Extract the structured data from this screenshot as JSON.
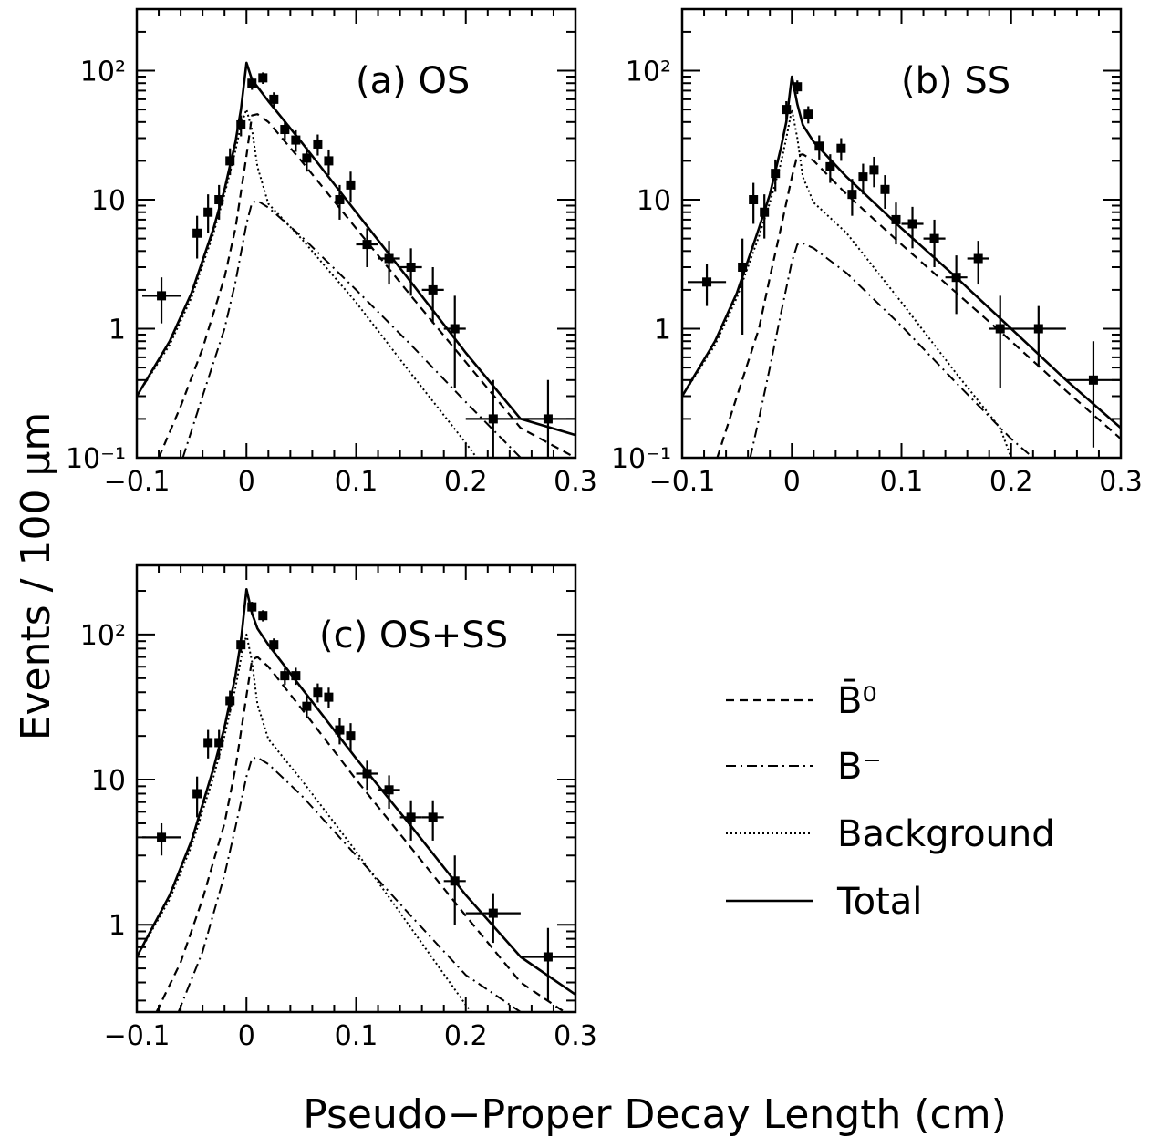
{
  "figure": {
    "ylabel": "Events / 100 μm",
    "xlabel": "Pseudo−Proper Decay Length (cm)"
  },
  "legend": {
    "items": [
      {
        "key": "b0",
        "label": "B̄⁰",
        "style": "dashed"
      },
      {
        "key": "bminus",
        "label": "B⁻",
        "style": "dashdot"
      },
      {
        "key": "background",
        "label": "Background",
        "style": "dotted"
      },
      {
        "key": "total",
        "label": "Total",
        "style": "solid"
      }
    ]
  },
  "chart_data": [
    {
      "type": "scatter",
      "panel": "a",
      "title_tag": "(a)",
      "title_text": "OS",
      "xlim": [
        -0.1,
        0.3
      ],
      "ylim": [
        0.1,
        300
      ],
      "yscale": "log",
      "xticks": [
        "−0.1",
        "0",
        "0.1",
        "0.2",
        "0.3"
      ],
      "yticks": [
        {
          "v": 0.1,
          "label": "10⁻¹"
        },
        {
          "v": 1,
          "label": "1"
        },
        {
          "v": 10,
          "label": "10"
        },
        {
          "v": 100,
          "label": "10²"
        }
      ],
      "points": [
        {
          "x": -0.0775,
          "y": 1.8,
          "xerr": 0.0175,
          "ylo": 1.1,
          "yhi": 2.5
        },
        {
          "x": -0.045,
          "y": 5.5,
          "xerr": 0,
          "ylo": 3.5,
          "yhi": 7.5
        },
        {
          "x": -0.035,
          "y": 8,
          "xerr": 0,
          "ylo": 5.5,
          "yhi": 11
        },
        {
          "x": -0.025,
          "y": 10,
          "xerr": 0,
          "ylo": 7,
          "yhi": 13
        },
        {
          "x": -0.015,
          "y": 20,
          "xerr": 0,
          "ylo": 15.5,
          "yhi": 25
        },
        {
          "x": -0.005,
          "y": 38,
          "xerr": 0,
          "ylo": 31,
          "yhi": 45
        },
        {
          "x": 0.005,
          "y": 80,
          "xerr": 0,
          "ylo": 71,
          "yhi": 89
        },
        {
          "x": 0.015,
          "y": 88,
          "xerr": 0,
          "ylo": 79,
          "yhi": 97
        },
        {
          "x": 0.025,
          "y": 60,
          "xerr": 0,
          "ylo": 52,
          "yhi": 68
        },
        {
          "x": 0.035,
          "y": 35,
          "xerr": 0,
          "ylo": 29,
          "yhi": 41
        },
        {
          "x": 0.045,
          "y": 29,
          "xerr": 0,
          "ylo": 23.5,
          "yhi": 34.5
        },
        {
          "x": 0.055,
          "y": 21,
          "xerr": 0,
          "ylo": 16.5,
          "yhi": 25.5
        },
        {
          "x": 0.065,
          "y": 27,
          "xerr": 0,
          "ylo": 22,
          "yhi": 32
        },
        {
          "x": 0.075,
          "y": 20,
          "xerr": 0,
          "ylo": 15.5,
          "yhi": 24.5
        },
        {
          "x": 0.085,
          "y": 10,
          "xerr": 0,
          "ylo": 7,
          "yhi": 13
        },
        {
          "x": 0.095,
          "y": 13,
          "xerr": 0,
          "ylo": 9.5,
          "yhi": 16.5
        },
        {
          "x": 0.11,
          "y": 4.5,
          "xerr": 0.01,
          "ylo": 3,
          "yhi": 6
        },
        {
          "x": 0.13,
          "y": 3.5,
          "xerr": 0.01,
          "ylo": 2.2,
          "yhi": 4.8
        },
        {
          "x": 0.15,
          "y": 3,
          "xerr": 0.01,
          "ylo": 1.8,
          "yhi": 4.2
        },
        {
          "x": 0.17,
          "y": 2,
          "xerr": 0.01,
          "ylo": 1.1,
          "yhi": 3
        },
        {
          "x": 0.19,
          "y": 1,
          "xerr": 0.01,
          "ylo": 0.35,
          "yhi": 1.8
        },
        {
          "x": 0.225,
          "y": 0.2,
          "xerr": 0.025,
          "ylo": 0.1,
          "yhi": 0.4
        },
        {
          "x": 0.275,
          "y": 0.2,
          "xerr": 0.025,
          "ylo": 0.1,
          "yhi": 0.4
        }
      ],
      "curves": {
        "total": {
          "x": [
            -0.1,
            -0.07,
            -0.05,
            -0.03,
            -0.02,
            -0.01,
            -0.005,
            0,
            0.005,
            0.01,
            0.02,
            0.05,
            0.1,
            0.15,
            0.2,
            0.25,
            0.3
          ],
          "y": [
            0.3,
            0.8,
            1.9,
            6,
            12,
            28,
            50,
            115,
            85,
            75,
            58,
            28,
            8,
            2.3,
            0.65,
            0.2,
            0.15
          ]
        },
        "b0": {
          "x": [
            -0.08,
            -0.06,
            -0.04,
            -0.02,
            -0.01,
            0,
            0.005,
            0.01,
            0.02,
            0.05,
            0.1,
            0.15,
            0.2,
            0.25,
            0.3
          ],
          "y": [
            0.1,
            0.25,
            0.7,
            2.5,
            6,
            22,
            45,
            46,
            40,
            20,
            6,
            1.8,
            0.55,
            0.17,
            0.1
          ]
        },
        "bminus": {
          "x": [
            -0.058,
            -0.04,
            -0.02,
            -0.01,
            0,
            0.005,
            0.01,
            0.02,
            0.05,
            0.1,
            0.15,
            0.2,
            0.25,
            0.265
          ],
          "y": [
            0.1,
            0.3,
            1.0,
            2.3,
            6.5,
            9.5,
            9.8,
            8.7,
            5.2,
            2.0,
            0.75,
            0.27,
            0.1,
            0.1
          ]
        },
        "background": {
          "x": [
            -0.1,
            -0.07,
            -0.05,
            -0.03,
            -0.02,
            -0.01,
            -0.005,
            0,
            0.005,
            0.01,
            0.02,
            0.05,
            0.1,
            0.15,
            0.2,
            0.21
          ],
          "y": [
            0.3,
            0.75,
            1.75,
            5.5,
            11,
            24,
            38,
            50,
            35,
            18,
            9.3,
            5,
            1.6,
            0.45,
            0.13,
            0.1
          ]
        }
      }
    },
    {
      "type": "scatter",
      "panel": "b",
      "title_tag": "(b)",
      "title_text": "SS",
      "xlim": [
        -0.1,
        0.3
      ],
      "ylim": [
        0.1,
        300
      ],
      "yscale": "log",
      "xticks": [
        "−0.1",
        "0",
        "0.1",
        "0.2",
        "0.3"
      ],
      "yticks": [
        {
          "v": 0.1,
          "label": "10⁻¹"
        },
        {
          "v": 1,
          "label": "1"
        },
        {
          "v": 10,
          "label": "10"
        },
        {
          "v": 100,
          "label": "10²"
        }
      ],
      "points": [
        {
          "x": -0.0775,
          "y": 2.3,
          "xerr": 0.0175,
          "ylo": 1.5,
          "yhi": 3.2
        },
        {
          "x": -0.045,
          "y": 3,
          "xerr": 0,
          "ylo": 0.9,
          "yhi": 5
        },
        {
          "x": -0.035,
          "y": 10,
          "xerr": 0,
          "ylo": 6.5,
          "yhi": 13.5
        },
        {
          "x": -0.025,
          "y": 8,
          "xerr": 0,
          "ylo": 5,
          "yhi": 11
        },
        {
          "x": -0.015,
          "y": 16,
          "xerr": 0,
          "ylo": 11.5,
          "yhi": 20.5
        },
        {
          "x": -0.005,
          "y": 50,
          "xerr": 0,
          "ylo": 42,
          "yhi": 58
        },
        {
          "x": 0.005,
          "y": 75,
          "xerr": 0,
          "ylo": 66,
          "yhi": 84
        },
        {
          "x": 0.015,
          "y": 46,
          "xerr": 0,
          "ylo": 39,
          "yhi": 53
        },
        {
          "x": 0.025,
          "y": 26,
          "xerr": 0,
          "ylo": 20.5,
          "yhi": 31.5
        },
        {
          "x": 0.035,
          "y": 18,
          "xerr": 0,
          "ylo": 13.5,
          "yhi": 22.5
        },
        {
          "x": 0.045,
          "y": 25,
          "xerr": 0,
          "ylo": 20,
          "yhi": 30
        },
        {
          "x": 0.055,
          "y": 11,
          "xerr": 0,
          "ylo": 7.5,
          "yhi": 14.5
        },
        {
          "x": 0.065,
          "y": 15,
          "xerr": 0,
          "ylo": 11,
          "yhi": 19
        },
        {
          "x": 0.075,
          "y": 17,
          "xerr": 0,
          "ylo": 12.5,
          "yhi": 21.5
        },
        {
          "x": 0.085,
          "y": 12,
          "xerr": 0,
          "ylo": 8.5,
          "yhi": 15.5
        },
        {
          "x": 0.095,
          "y": 7,
          "xerr": 0,
          "ylo": 4.5,
          "yhi": 9.5
        },
        {
          "x": 0.11,
          "y": 6.5,
          "xerr": 0.01,
          "ylo": 4.2,
          "yhi": 8.8
        },
        {
          "x": 0.13,
          "y": 5,
          "xerr": 0.01,
          "ylo": 3,
          "yhi": 7
        },
        {
          "x": 0.15,
          "y": 2.5,
          "xerr": 0.01,
          "ylo": 1.3,
          "yhi": 3.7
        },
        {
          "x": 0.17,
          "y": 3.5,
          "xerr": 0.01,
          "ylo": 2.2,
          "yhi": 4.8
        },
        {
          "x": 0.19,
          "y": 1,
          "xerr": 0.01,
          "ylo": 0.35,
          "yhi": 1.8
        },
        {
          "x": 0.225,
          "y": 1,
          "xerr": 0.025,
          "ylo": 0.5,
          "yhi": 1.5
        },
        {
          "x": 0.275,
          "y": 0.4,
          "xerr": 0.025,
          "ylo": 0.12,
          "yhi": 0.8
        }
      ],
      "curves": {
        "total": {
          "x": [
            -0.1,
            -0.07,
            -0.05,
            -0.03,
            -0.02,
            -0.01,
            -0.005,
            0,
            0.005,
            0.01,
            0.02,
            0.05,
            0.1,
            0.15,
            0.2,
            0.25,
            0.3
          ],
          "y": [
            0.3,
            0.8,
            1.9,
            6,
            11,
            25,
            40,
            90,
            55,
            38,
            28,
            15,
            6,
            2.5,
            1,
            0.4,
            0.17
          ]
        },
        "b0": {
          "x": [
            -0.068,
            -0.05,
            -0.03,
            -0.02,
            -0.01,
            0,
            0.005,
            0.01,
            0.02,
            0.05,
            0.1,
            0.15,
            0.2,
            0.25,
            0.3
          ],
          "y": [
            0.1,
            0.3,
            1.0,
            2.5,
            6,
            15,
            22,
            22.5,
            20,
            11,
            4.5,
            1.9,
            0.8,
            0.33,
            0.14
          ]
        },
        "bminus": {
          "x": [
            -0.038,
            -0.03,
            -0.02,
            -0.01,
            0,
            0.005,
            0.01,
            0.02,
            0.05,
            0.1,
            0.15,
            0.2,
            0.22
          ],
          "y": [
            0.1,
            0.2,
            0.5,
            1.3,
            3.3,
            4.5,
            4.6,
            4.2,
            2.7,
            1.05,
            0.38,
            0.14,
            0.1
          ]
        },
        "background": {
          "x": [
            -0.1,
            -0.07,
            -0.05,
            -0.03,
            -0.02,
            -0.01,
            -0.005,
            0,
            0.005,
            0.01,
            0.02,
            0.05,
            0.1,
            0.15,
            0.19,
            0.2
          ],
          "y": [
            0.3,
            0.75,
            1.75,
            5.2,
            9.5,
            19,
            30,
            50,
            30,
            15,
            9.5,
            5.5,
            1.6,
            0.45,
            0.17,
            0.1
          ]
        }
      }
    },
    {
      "type": "scatter",
      "panel": "c",
      "title_tag": "(c)",
      "title_text": "OS+SS",
      "xlim": [
        -0.1,
        0.3
      ],
      "ylim": [
        0.25,
        300
      ],
      "yscale": "log",
      "xticks": [
        "−0.1",
        "0",
        "0.1",
        "0.2",
        "0.3"
      ],
      "yticks": [
        {
          "v": 1,
          "label": "1"
        },
        {
          "v": 10,
          "label": "10"
        },
        {
          "v": 100,
          "label": "10²"
        }
      ],
      "points": [
        {
          "x": -0.0775,
          "y": 4,
          "xerr": 0.0175,
          "ylo": 3,
          "yhi": 5
        },
        {
          "x": -0.045,
          "y": 8,
          "xerr": 0,
          "ylo": 5.5,
          "yhi": 10.5
        },
        {
          "x": -0.035,
          "y": 18,
          "xerr": 0,
          "ylo": 14,
          "yhi": 22
        },
        {
          "x": -0.025,
          "y": 18,
          "xerr": 0,
          "ylo": 14,
          "yhi": 22
        },
        {
          "x": -0.015,
          "y": 35,
          "xerr": 0,
          "ylo": 29,
          "yhi": 41
        },
        {
          "x": -0.005,
          "y": 85,
          "xerr": 0,
          "ylo": 75,
          "yhi": 95
        },
        {
          "x": 0.005,
          "y": 155,
          "xerr": 0,
          "ylo": 142,
          "yhi": 168
        },
        {
          "x": 0.015,
          "y": 135,
          "xerr": 0,
          "ylo": 123,
          "yhi": 147
        },
        {
          "x": 0.025,
          "y": 85,
          "xerr": 0,
          "ylo": 76,
          "yhi": 94
        },
        {
          "x": 0.035,
          "y": 52,
          "xerr": 0,
          "ylo": 45,
          "yhi": 59
        },
        {
          "x": 0.045,
          "y": 52,
          "xerr": 0,
          "ylo": 45,
          "yhi": 59
        },
        {
          "x": 0.055,
          "y": 32,
          "xerr": 0,
          "ylo": 26.5,
          "yhi": 37.5
        },
        {
          "x": 0.065,
          "y": 40,
          "xerr": 0,
          "ylo": 34,
          "yhi": 46
        },
        {
          "x": 0.075,
          "y": 37,
          "xerr": 0,
          "ylo": 31,
          "yhi": 43
        },
        {
          "x": 0.085,
          "y": 22,
          "xerr": 0,
          "ylo": 17.5,
          "yhi": 26.5
        },
        {
          "x": 0.095,
          "y": 20,
          "xerr": 0,
          "ylo": 15.5,
          "yhi": 24.5
        },
        {
          "x": 0.11,
          "y": 11,
          "xerr": 0.01,
          "ylo": 8.5,
          "yhi": 13.5
        },
        {
          "x": 0.13,
          "y": 8.5,
          "xerr": 0.01,
          "ylo": 6.3,
          "yhi": 10.7
        },
        {
          "x": 0.15,
          "y": 5.5,
          "xerr": 0.01,
          "ylo": 3.8,
          "yhi": 7.2
        },
        {
          "x": 0.17,
          "y": 5.5,
          "xerr": 0.01,
          "ylo": 3.8,
          "yhi": 7.2
        },
        {
          "x": 0.19,
          "y": 2,
          "xerr": 0.01,
          "ylo": 1.0,
          "yhi": 3
        },
        {
          "x": 0.225,
          "y": 1.2,
          "xerr": 0.025,
          "ylo": 0.75,
          "yhi": 1.65
        },
        {
          "x": 0.275,
          "y": 0.6,
          "xerr": 0.025,
          "ylo": 0.3,
          "yhi": 0.95
        }
      ],
      "curves": {
        "total": {
          "x": [
            -0.1,
            -0.07,
            -0.05,
            -0.03,
            -0.02,
            -0.01,
            -0.005,
            0,
            0.005,
            0.01,
            0.02,
            0.05,
            0.1,
            0.15,
            0.2,
            0.25,
            0.3
          ],
          "y": [
            0.6,
            1.6,
            3.8,
            12,
            23,
            52,
            90,
            205,
            140,
            110,
            85,
            43,
            14,
            4.8,
            1.6,
            0.6,
            0.33
          ]
        },
        "b0": {
          "x": [
            -0.082,
            -0.06,
            -0.04,
            -0.02,
            -0.01,
            0,
            0.005,
            0.01,
            0.02,
            0.05,
            0.1,
            0.15,
            0.2,
            0.25,
            0.29
          ],
          "y": [
            0.25,
            0.55,
            1.5,
            5,
            12,
            38,
            67,
            70,
            60,
            31,
            10,
            3.4,
            1.15,
            0.4,
            0.25
          ]
        },
        "bminus": {
          "x": [
            -0.062,
            -0.04,
            -0.02,
            -0.01,
            0,
            0.005,
            0.01,
            0.02,
            0.05,
            0.1,
            0.15,
            0.2,
            0.25,
            0.252
          ],
          "y": [
            0.25,
            0.65,
            2.2,
            4.7,
            10.5,
            14,
            14.2,
            12.8,
            7.8,
            3.0,
            1.15,
            0.45,
            0.25,
            0.25
          ]
        },
        "background": {
          "x": [
            -0.1,
            -0.07,
            -0.05,
            -0.03,
            -0.02,
            -0.01,
            -0.005,
            0,
            0.005,
            0.01,
            0.02,
            0.05,
            0.1,
            0.15,
            0.2,
            0.205
          ],
          "y": [
            0.6,
            1.5,
            3.5,
            10.5,
            20,
            43,
            68,
            100,
            65,
            33,
            19,
            10,
            3.2,
            0.95,
            0.28,
            0.25
          ]
        }
      }
    }
  ]
}
